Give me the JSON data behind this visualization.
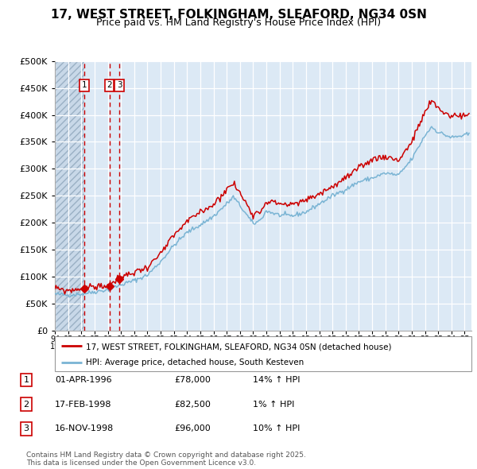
{
  "title": "17, WEST STREET, FOLKINGHAM, SLEAFORD, NG34 0SN",
  "subtitle": "Price paid vs. HM Land Registry's House Price Index (HPI)",
  "legend_line1": "17, WEST STREET, FOLKINGHAM, SLEAFORD, NG34 0SN (detached house)",
  "legend_line2": "HPI: Average price, detached house, South Kesteven",
  "footnote": "Contains HM Land Registry data © Crown copyright and database right 2025.\nThis data is licensed under the Open Government Licence v3.0.",
  "transactions": [
    {
      "num": 1,
      "date": "01-APR-1996",
      "price": "£78,000",
      "pct": "14% ↑ HPI"
    },
    {
      "num": 2,
      "date": "17-FEB-1998",
      "price": "£82,500",
      "pct": "1% ↑ HPI"
    },
    {
      "num": 3,
      "date": "16-NOV-1998",
      "price": "£96,000",
      "pct": "10% ↑ HPI"
    }
  ],
  "trans_dates": [
    1996.25,
    1998.12,
    1998.88
  ],
  "trans_prices": [
    78000,
    82500,
    96000
  ],
  "red_color": "#cc0000",
  "blue_color": "#7ab4d4",
  "plot_bg": "#dce9f5",
  "ylim": [
    0,
    500000
  ],
  "yticks": [
    0,
    50000,
    100000,
    150000,
    200000,
    250000,
    300000,
    350000,
    400000,
    450000,
    500000
  ],
  "xlim_start": 1994.0,
  "xlim_end": 2025.5,
  "hpi_keypoints": [
    [
      1994.0,
      68000
    ],
    [
      1995.0,
      66000
    ],
    [
      1996.0,
      68000
    ],
    [
      1997.0,
      72000
    ],
    [
      1998.0,
      76000
    ],
    [
      1999.0,
      85000
    ],
    [
      2000.0,
      93000
    ],
    [
      2001.0,
      103000
    ],
    [
      2002.0,
      128000
    ],
    [
      2003.0,
      158000
    ],
    [
      2004.0,
      182000
    ],
    [
      2005.0,
      196000
    ],
    [
      2006.0,
      212000
    ],
    [
      2007.0,
      235000
    ],
    [
      2007.5,
      248000
    ],
    [
      2008.0,
      232000
    ],
    [
      2009.0,
      198000
    ],
    [
      2009.5,
      204000
    ],
    [
      2010.0,
      222000
    ],
    [
      2011.0,
      214000
    ],
    [
      2012.0,
      213000
    ],
    [
      2013.0,
      220000
    ],
    [
      2014.0,
      235000
    ],
    [
      2015.0,
      250000
    ],
    [
      2016.0,
      262000
    ],
    [
      2017.0,
      276000
    ],
    [
      2018.0,
      283000
    ],
    [
      2019.0,
      292000
    ],
    [
      2020.0,
      288000
    ],
    [
      2021.0,
      318000
    ],
    [
      2022.0,
      362000
    ],
    [
      2022.5,
      378000
    ],
    [
      2023.0,
      368000
    ],
    [
      2024.0,
      358000
    ],
    [
      2025.0,
      362000
    ],
    [
      2025.4,
      365000
    ]
  ],
  "red_keypoints": [
    [
      1994.0,
      78000
    ],
    [
      1995.0,
      74000
    ],
    [
      1996.0,
      78000
    ],
    [
      1997.0,
      82000
    ],
    [
      1998.0,
      82500
    ],
    [
      1998.88,
      96000
    ],
    [
      1999.0,
      100000
    ],
    [
      2000.0,
      108000
    ],
    [
      2001.0,
      118000
    ],
    [
      2002.0,
      142000
    ],
    [
      2003.0,
      176000
    ],
    [
      2004.0,
      202000
    ],
    [
      2005.0,
      220000
    ],
    [
      2006.0,
      234000
    ],
    [
      2007.0,
      262000
    ],
    [
      2007.5,
      273000
    ],
    [
      2008.0,
      255000
    ],
    [
      2009.0,
      216000
    ],
    [
      2009.5,
      220000
    ],
    [
      2010.0,
      240000
    ],
    [
      2011.0,
      236000
    ],
    [
      2012.0,
      233000
    ],
    [
      2013.0,
      242000
    ],
    [
      2014.0,
      254000
    ],
    [
      2015.0,
      267000
    ],
    [
      2016.0,
      283000
    ],
    [
      2017.0,
      300000
    ],
    [
      2018.0,
      318000
    ],
    [
      2019.0,
      323000
    ],
    [
      2020.0,
      316000
    ],
    [
      2021.0,
      350000
    ],
    [
      2022.0,
      405000
    ],
    [
      2022.5,
      425000
    ],
    [
      2023.0,
      413000
    ],
    [
      2023.5,
      403000
    ],
    [
      2024.0,
      398000
    ],
    [
      2025.0,
      400000
    ],
    [
      2025.4,
      398000
    ]
  ]
}
